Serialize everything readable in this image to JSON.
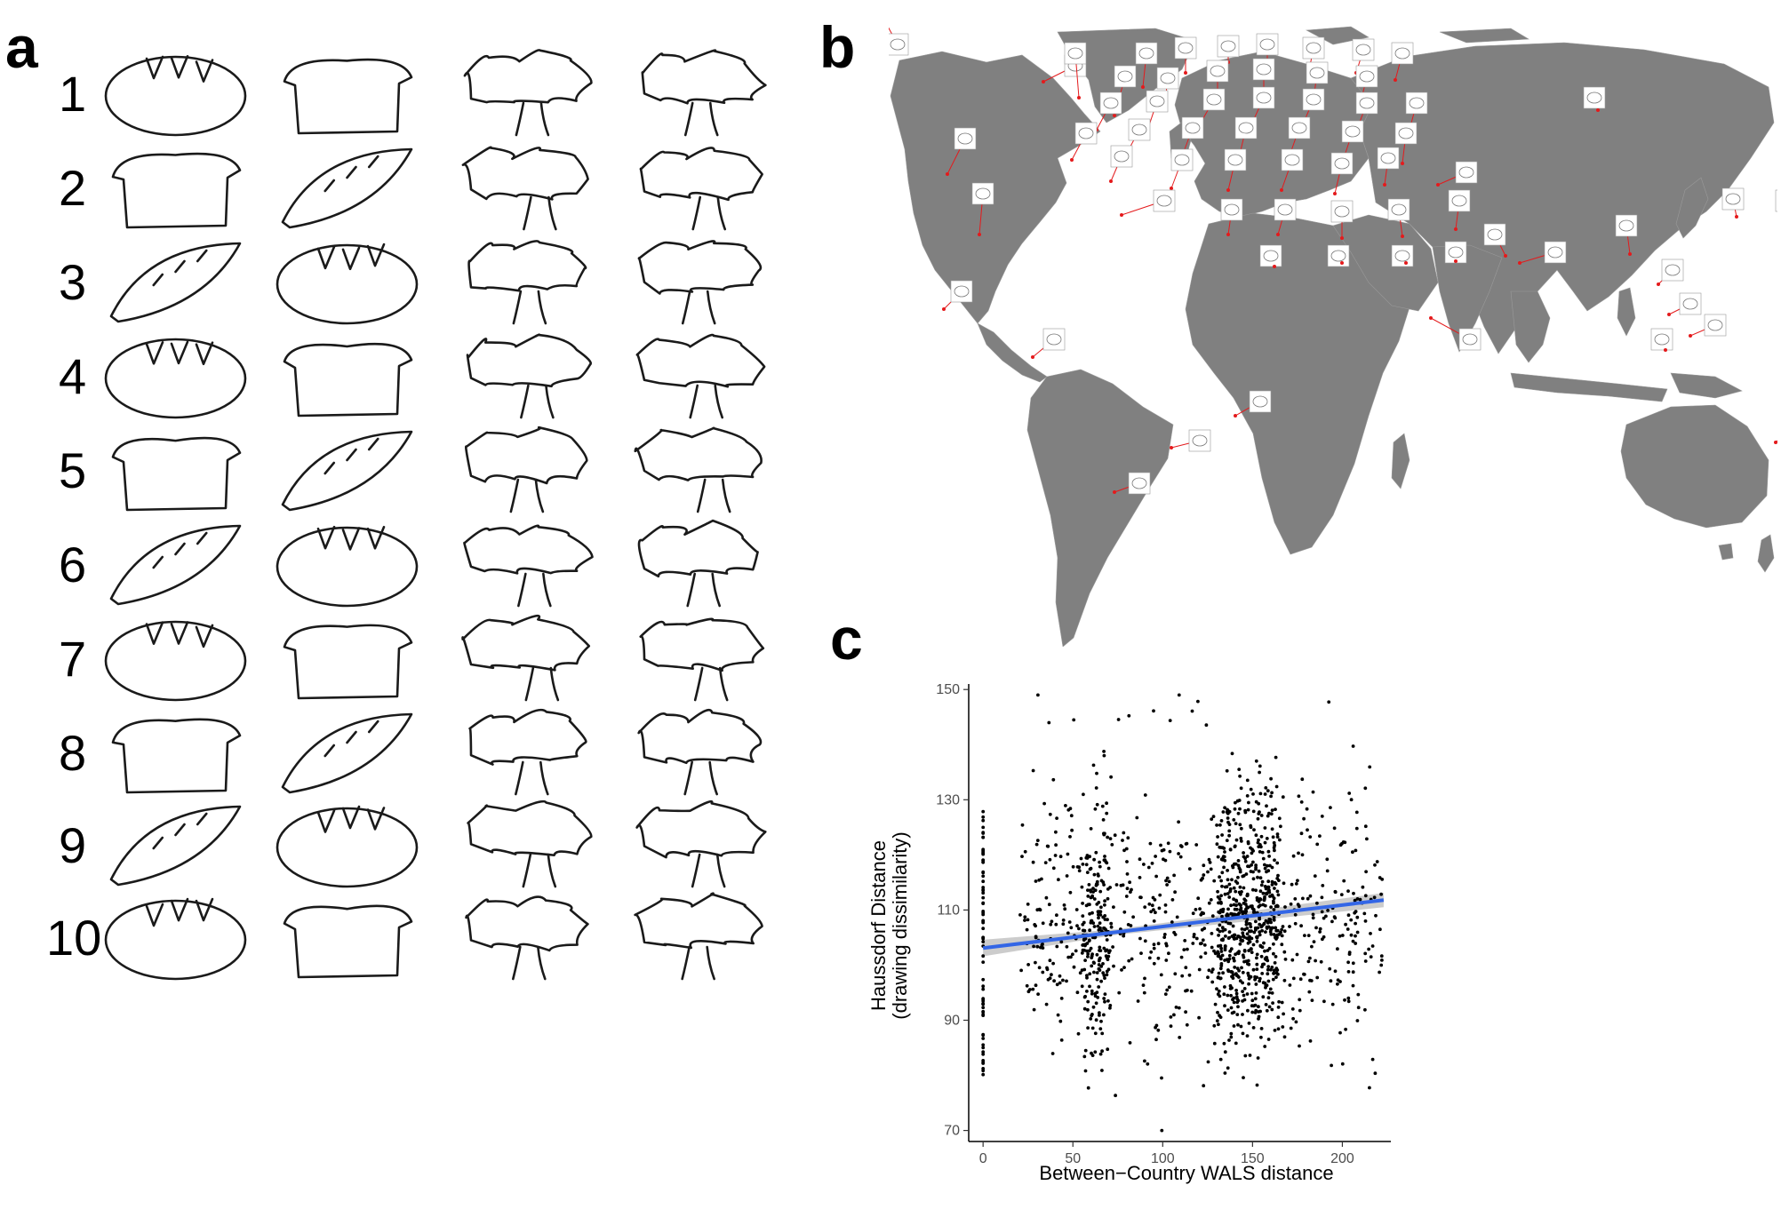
{
  "panels": {
    "a": {
      "letter": "a",
      "row_numbers": [
        "1",
        "2",
        "3",
        "4",
        "5",
        "6",
        "7",
        "8",
        "9",
        "10"
      ],
      "columns": [
        {
          "subject": "bread",
          "icon": "bread-drawing-icon"
        },
        {
          "subject": "bread",
          "icon": "bread-drawing-icon"
        },
        {
          "subject": "tree",
          "icon": "tree-drawing-icon"
        },
        {
          "subject": "tree",
          "icon": "tree-drawing-icon"
        }
      ]
    },
    "b": {
      "letter": "b",
      "map_fill": "#808080",
      "marker_color": "#e41a1c",
      "marker_icon": "bread-drawing-thumbnail-icon"
    },
    "c": {
      "letter": "c"
    }
  },
  "chart_data": {
    "type": "scatter",
    "xlabel": "Between−Country WALS distance",
    "ylabel": [
      "Haussdorf Distance",
      "(drawing dissimilarity)"
    ],
    "xlim": [
      -8,
      227
    ],
    "ylim": [
      68,
      151
    ],
    "x_ticks": [
      0,
      50,
      100,
      150,
      200
    ],
    "y_ticks": [
      70,
      90,
      110,
      130,
      150
    ],
    "grid": false,
    "point_color": "#000000",
    "regression": {
      "x": [
        0,
        223
      ],
      "y": [
        103.1,
        111.8
      ],
      "color": "#3366e6",
      "ci_color": "#bfbfbf"
    },
    "points_note_count": 1700,
    "points_summary": {
      "x_range": [
        0,
        223
      ],
      "y_range": [
        70,
        150
      ],
      "dense_cluster_x": [
        130,
        165
      ],
      "zero_column_y": [
        80,
        128
      ]
    }
  }
}
